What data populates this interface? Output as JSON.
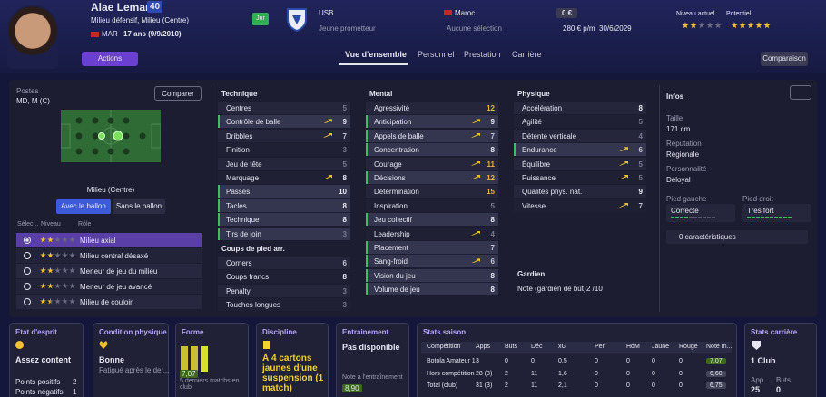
{
  "header": {
    "name": "Alae Lemamri",
    "number": "40",
    "position": "Milieu défensif, Milieu (Centre)",
    "nation": "MAR",
    "age": "17 ans (9/9/2010)",
    "badge": "Jnr",
    "club": "USB",
    "club_role": "Jeune prometteur",
    "country": "Maroc",
    "selection": "Aucune sélection",
    "value": "0 €",
    "wage": "280 € p/m",
    "contract": "30/6/2029",
    "level_label": "Niveau actuel",
    "potential_label": "Potentiel",
    "current_ability": 2,
    "potential_ability": 5,
    "actions": "Actions",
    "comparison": "Comparaison"
  },
  "tabs": [
    "Vue d'ensemble",
    "Personnel",
    "Prestation",
    "Carrière"
  ],
  "positions": {
    "label": "Postes",
    "value": "MD, M (C)",
    "compare": "Comparer",
    "caption": "Milieu (Centre)",
    "toggles": [
      "Avec le ballon",
      "Sans le ballon"
    ],
    "role_headers": [
      "Sélec...",
      "Niveau",
      "Rôle"
    ],
    "roles": [
      {
        "name": "Milieu axial",
        "stars": 2
      },
      {
        "name": "Milieu central désaxé",
        "stars": 2
      },
      {
        "name": "Meneur de jeu du milieu",
        "stars": 2
      },
      {
        "name": "Meneur de jeu avancé",
        "stars": 2
      },
      {
        "name": "Milieu de couloir",
        "stars": 1.5
      }
    ]
  },
  "attributes": {
    "technique": {
      "title": "Technique",
      "items": [
        {
          "name": "Centres",
          "value": 5
        },
        {
          "name": "Contrôle de balle",
          "value": 9,
          "key": true,
          "up": true
        },
        {
          "name": "Dribbles",
          "value": 7,
          "up": true
        },
        {
          "name": "Finition",
          "value": 3
        },
        {
          "name": "Jeu de tête",
          "value": 5
        },
        {
          "name": "Marquage",
          "value": 8,
          "up": true
        },
        {
          "name": "Passes",
          "value": 10,
          "key": true
        },
        {
          "name": "Tacles",
          "value": 8,
          "key": true
        },
        {
          "name": "Technique",
          "value": 8,
          "key": true
        },
        {
          "name": "Tirs de loin",
          "value": 3,
          "key": true
        }
      ]
    },
    "set_pieces": {
      "title": "Coups de pied arr.",
      "items": [
        {
          "name": "Corners",
          "value": 6
        },
        {
          "name": "Coups francs",
          "value": 8
        },
        {
          "name": "Penalty",
          "value": 3
        },
        {
          "name": "Touches longues",
          "value": 3
        }
      ]
    },
    "mental": {
      "title": "Mental",
      "items": [
        {
          "name": "Agressivité",
          "value": 12
        },
        {
          "name": "Anticipation",
          "value": 9,
          "key": true,
          "up": true
        },
        {
          "name": "Appels de balle",
          "value": 7,
          "key": true,
          "up": true
        },
        {
          "name": "Concentration",
          "value": 8,
          "key": true
        },
        {
          "name": "Courage",
          "value": 11,
          "up": true
        },
        {
          "name": "Décisions",
          "value": 12,
          "key": true,
          "up": true
        },
        {
          "name": "Détermination",
          "value": 15
        },
        {
          "name": "Inspiration",
          "value": 5
        },
        {
          "name": "Jeu collectif",
          "value": 8,
          "key": true
        },
        {
          "name": "Leadership",
          "value": 4,
          "up": true
        },
        {
          "name": "Placement",
          "value": 7,
          "key": true
        },
        {
          "name": "Sang-froid",
          "value": 6,
          "key": true,
          "up": true
        },
        {
          "name": "Vision du jeu",
          "value": 8,
          "key": true
        },
        {
          "name": "Volume de jeu",
          "value": 8,
          "key": true
        }
      ]
    },
    "physical": {
      "title": "Physique",
      "items": [
        {
          "name": "Accélération",
          "value": 8
        },
        {
          "name": "Agilité",
          "value": 5
        },
        {
          "name": "Détente verticale",
          "value": 4
        },
        {
          "name": "Endurance",
          "value": 6,
          "key": true,
          "up": true
        },
        {
          "name": "Équilibre",
          "value": 5,
          "up": true
        },
        {
          "name": "Puissance",
          "value": 5,
          "up": true
        },
        {
          "name": "Qualités phys. nat.",
          "value": 9
        },
        {
          "name": "Vitesse",
          "value": 7,
          "up": true
        }
      ]
    },
    "goalkeeper": {
      "title": "Gardien",
      "label": "Note (gardien de but)",
      "value": "2 /10"
    }
  },
  "info": {
    "title": "Infos",
    "height_label": "Taille",
    "height": "171 cm",
    "reputation_label": "Réputation",
    "reputation": "Régionale",
    "personality_label": "Personnalité",
    "personality": "Déloyal",
    "left_foot_label": "Pied gauche",
    "left_foot": "Correcte",
    "right_foot_label": "Pied droit",
    "right_foot": "Très fort",
    "traits": "0 caractéristiques"
  },
  "cards": {
    "morale": {
      "title": "Etat d'esprit",
      "value": "Assez content",
      "pos_label": "Points positifs",
      "pos": "2",
      "neg_label": "Points négatifs",
      "neg": "1"
    },
    "condition": {
      "title": "Condition physique",
      "value": "Bonne",
      "note": "Fatigué après le der..."
    },
    "form": {
      "title": "Forme",
      "rating": "7,07",
      "note": "5 derniers matchs en club",
      "bars": [
        7.1,
        7.0,
        7.1
      ]
    },
    "discipline": {
      "title": "Discipline",
      "value": "À 4 cartons jaunes d'une suspension (1 match)"
    },
    "training": {
      "title": "Entrainement",
      "value": "Pas disponible",
      "note_label": "Note à l'entraînement",
      "note": "8,90"
    },
    "season": {
      "title": "Stats saison",
      "headers": [
        "Compétition",
        "Apps",
        "Buts",
        "Déc",
        "xG",
        "Pen",
        "HdM",
        "Jaune",
        "Rouge",
        "Note m..."
      ],
      "rows": [
        [
          "Botola Amateur 1",
          "3",
          "0",
          "0",
          "0,5",
          "0",
          "0",
          "0",
          "0",
          "7,07"
        ],
        [
          "Hors compétition",
          "28 (3)",
          "2",
          "11",
          "1,6",
          "0",
          "0",
          "0",
          "0",
          "6,60"
        ],
        [
          "Total (club)",
          "31 (3)",
          "2",
          "11",
          "2,1",
          "0",
          "0",
          "0",
          "0",
          "6,75"
        ]
      ]
    },
    "career": {
      "title": "Stats carrière",
      "clubs": "1 Club",
      "apps_label": "App",
      "apps": "25",
      "goals_label": "Buts",
      "goals": "0"
    }
  }
}
